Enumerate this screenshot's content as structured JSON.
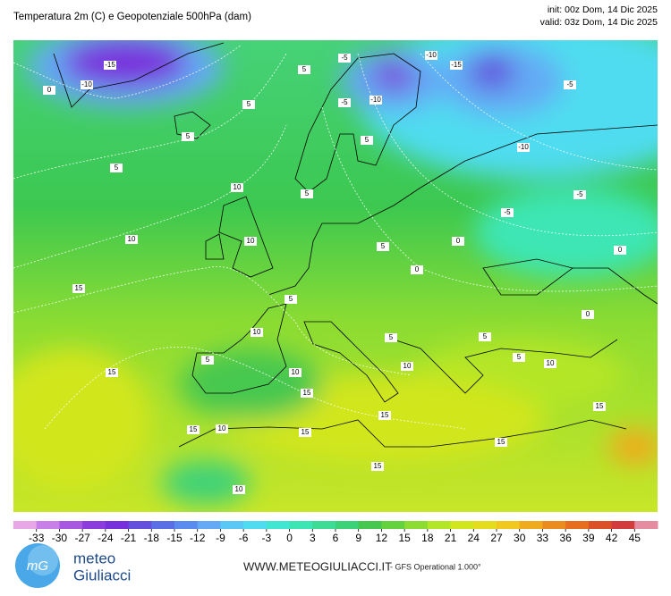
{
  "header": {
    "title": "Temperatura 2m (C) e Geopotenziale 500hPa (dam)",
    "init": "init: 00z Dom, 14 Dic 2025",
    "valid": "valid: 03z Dom, 14 Dic 2025"
  },
  "map": {
    "contour_labels": [
      -15,
      -10,
      0,
      5,
      5,
      10,
      10,
      15,
      15,
      5,
      5,
      -5,
      -10,
      -5,
      -15,
      -10,
      -5,
      -10,
      -5,
      -5,
      0,
      5,
      0,
      0,
      0,
      5,
      5,
      10,
      5,
      10,
      5,
      5,
      10,
      10,
      15,
      15,
      15,
      15,
      10,
      15,
      15,
      10,
      15,
      5,
      5,
      10
    ]
  },
  "colorbar": {
    "lim": [
      -36,
      48
    ],
    "ticks": [
      -33,
      -30,
      -27,
      -24,
      -21,
      -18,
      -15,
      -12,
      -9,
      -6,
      -3,
      0,
      3,
      6,
      9,
      12,
      15,
      18,
      21,
      24,
      27,
      30,
      33,
      36,
      39,
      42,
      45
    ],
    "colors": [
      "#e8a8e8",
      "#c880e8",
      "#a858e0",
      "#8c3cdc",
      "#7830dc",
      "#6450dc",
      "#5a6ee6",
      "#5a8cf0",
      "#64aaf5",
      "#5ac8f5",
      "#50dcf0",
      "#40e6d2",
      "#3ce6b4",
      "#3cdc96",
      "#3cd278",
      "#46c850",
      "#64d23c",
      "#8cdc32",
      "#b4e628",
      "#d2e61e",
      "#e6dc1e",
      "#f0c81e",
      "#f0aa1e",
      "#eb8c1e",
      "#e66e1e",
      "#dc5028",
      "#d23c3c",
      "#e68ca0"
    ]
  },
  "footer": {
    "logo_top": "meteo",
    "logo_bottom": "Giuliacci",
    "website": "WWW.METEOGIULIACCI.IT",
    "model": "- GFS Operational 1.000°"
  }
}
